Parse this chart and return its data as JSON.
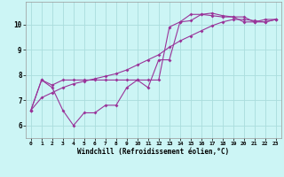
{
  "xlabel": "Windchill (Refroidissement éolien,°C)",
  "bg_color": "#ccf5f5",
  "line_color": "#993399",
  "grid_color": "#aadddd",
  "xlim": [
    -0.5,
    23.5
  ],
  "ylim": [
    5.5,
    10.9
  ],
  "yticks": [
    6,
    7,
    8,
    9,
    10
  ],
  "xticks": [
    0,
    1,
    2,
    3,
    4,
    5,
    6,
    7,
    8,
    9,
    10,
    11,
    12,
    13,
    14,
    15,
    16,
    17,
    18,
    19,
    20,
    21,
    22,
    23
  ],
  "series1_x": [
    0,
    1,
    2,
    3,
    4,
    5,
    6,
    7,
    8,
    9,
    10,
    11,
    12,
    13,
    14,
    15,
    16,
    17,
    18,
    19,
    20,
    21,
    22,
    23
  ],
  "series1_y": [
    6.6,
    7.8,
    7.6,
    7.8,
    7.8,
    7.8,
    7.8,
    7.8,
    7.8,
    7.8,
    7.8,
    7.8,
    7.8,
    9.9,
    10.1,
    10.15,
    10.4,
    10.45,
    10.35,
    10.3,
    10.3,
    10.1,
    10.1,
    10.2
  ],
  "series2_x": [
    0,
    1,
    2,
    3,
    4,
    5,
    6,
    7,
    8,
    9,
    10,
    11,
    12,
    13,
    14,
    15,
    16,
    17,
    18,
    19,
    20,
    21,
    22,
    23
  ],
  "series2_y": [
    6.6,
    7.8,
    7.5,
    6.6,
    6.0,
    6.5,
    6.5,
    6.8,
    6.8,
    7.5,
    7.8,
    7.5,
    8.6,
    8.6,
    10.1,
    10.4,
    10.4,
    10.35,
    10.3,
    10.3,
    10.1,
    10.1,
    10.2,
    10.2
  ],
  "series3_x": [
    0,
    1,
    2,
    3,
    4,
    5,
    6,
    7,
    8,
    9,
    10,
    11,
    12,
    13,
    14,
    15,
    16,
    17,
    18,
    19,
    20,
    21,
    22,
    23
  ],
  "series3_y": [
    6.6,
    7.1,
    7.3,
    7.5,
    7.65,
    7.75,
    7.85,
    7.95,
    8.05,
    8.2,
    8.4,
    8.6,
    8.8,
    9.1,
    9.35,
    9.55,
    9.75,
    9.95,
    10.1,
    10.2,
    10.2,
    10.15,
    10.1,
    10.2
  ]
}
